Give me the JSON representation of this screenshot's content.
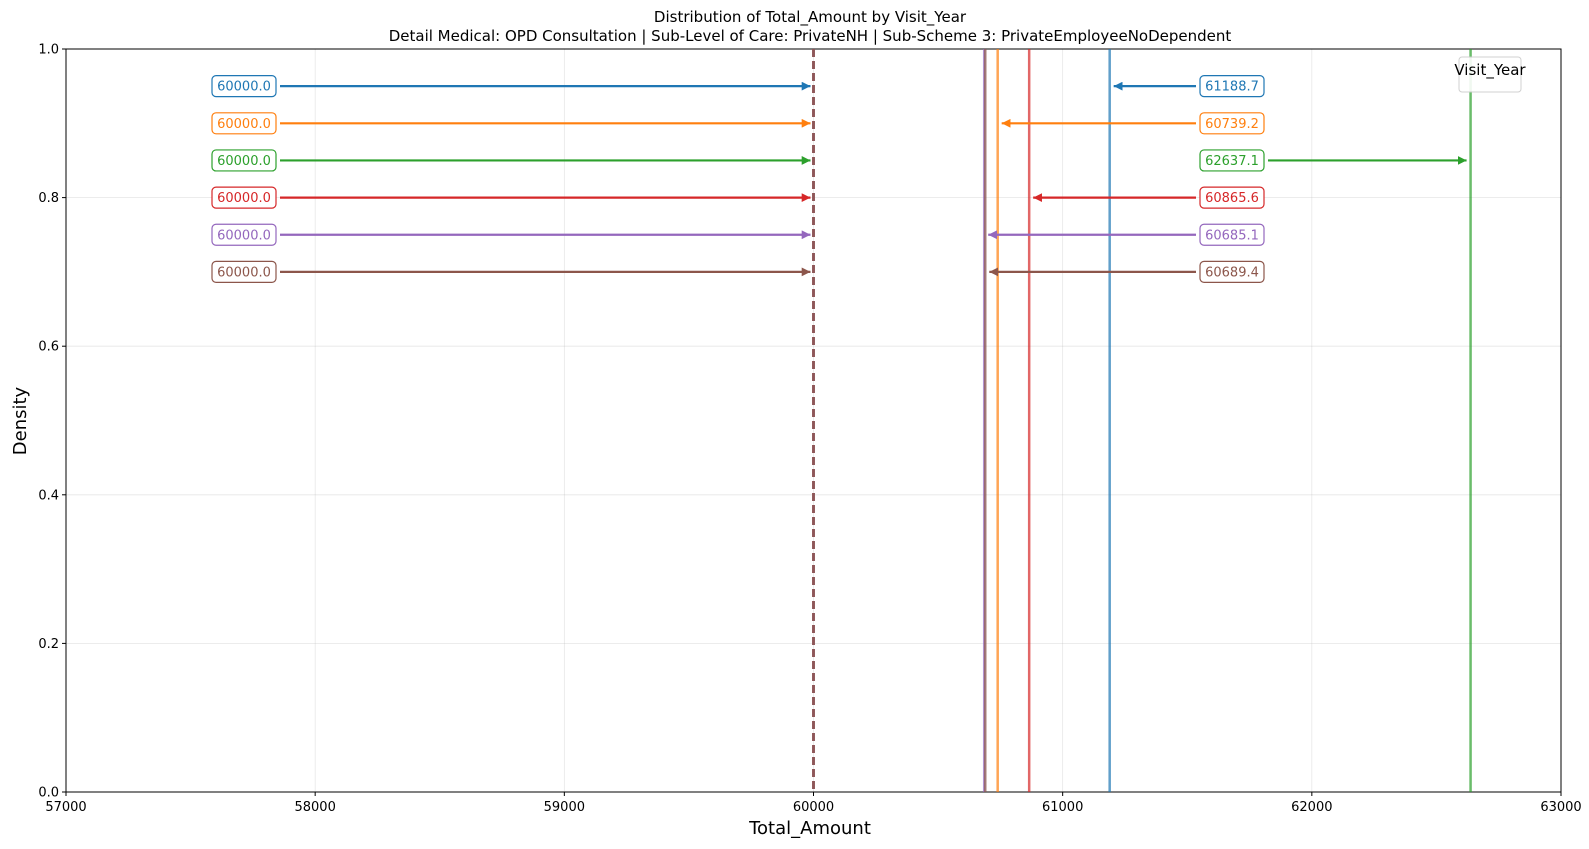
{
  "chart_data": {
    "type": "line",
    "title": "Distribution of Total_Amount by Visit_Year",
    "subtitle": "Detail Medical: OPD Consultation | Sub-Level of Care: PrivateNH | Sub-Scheme 3: PrivateEmployeeNoDependent",
    "xlabel": "Total_Amount",
    "ylabel": "Density",
    "xlim": [
      57000,
      63000
    ],
    "ylim": [
      0,
      1
    ],
    "xticks": [
      "57000",
      "58000",
      "59000",
      "60000",
      "61000",
      "62000",
      "63000"
    ],
    "yticks": [
      "0.0",
      "0.2",
      "0.4",
      "0.6",
      "0.8",
      "1.0"
    ],
    "grid": true,
    "legend": {
      "title": "Visit_Year",
      "placement": "top-right"
    },
    "series": [
      {
        "color": "#1f77b4",
        "median": 60000.0,
        "mean": 61188.7,
        "median_label": "60000.0",
        "mean_label": "61188.7",
        "label_y": 0.95
      },
      {
        "color": "#ff7f0e",
        "median": 60000.0,
        "mean": 60739.2,
        "median_label": "60000.0",
        "mean_label": "60739.2",
        "label_y": 0.9
      },
      {
        "color": "#2ca02c",
        "median": 60000.0,
        "mean": 62637.1,
        "median_label": "60000.0",
        "mean_label": "62637.1",
        "label_y": 0.85
      },
      {
        "color": "#d62728",
        "median": 60000.0,
        "mean": 60865.6,
        "median_label": "60000.0",
        "mean_label": "60865.6",
        "label_y": 0.8
      },
      {
        "color": "#9467bd",
        "median": 60000.0,
        "mean": 60685.1,
        "median_label": "60000.0",
        "mean_label": "60685.1",
        "label_y": 0.75
      },
      {
        "color": "#8c564b",
        "median": 60000.0,
        "mean": 60689.4,
        "median_label": "60000.0",
        "mean_label": "60689.4",
        "label_y": 0.7
      }
    ]
  }
}
